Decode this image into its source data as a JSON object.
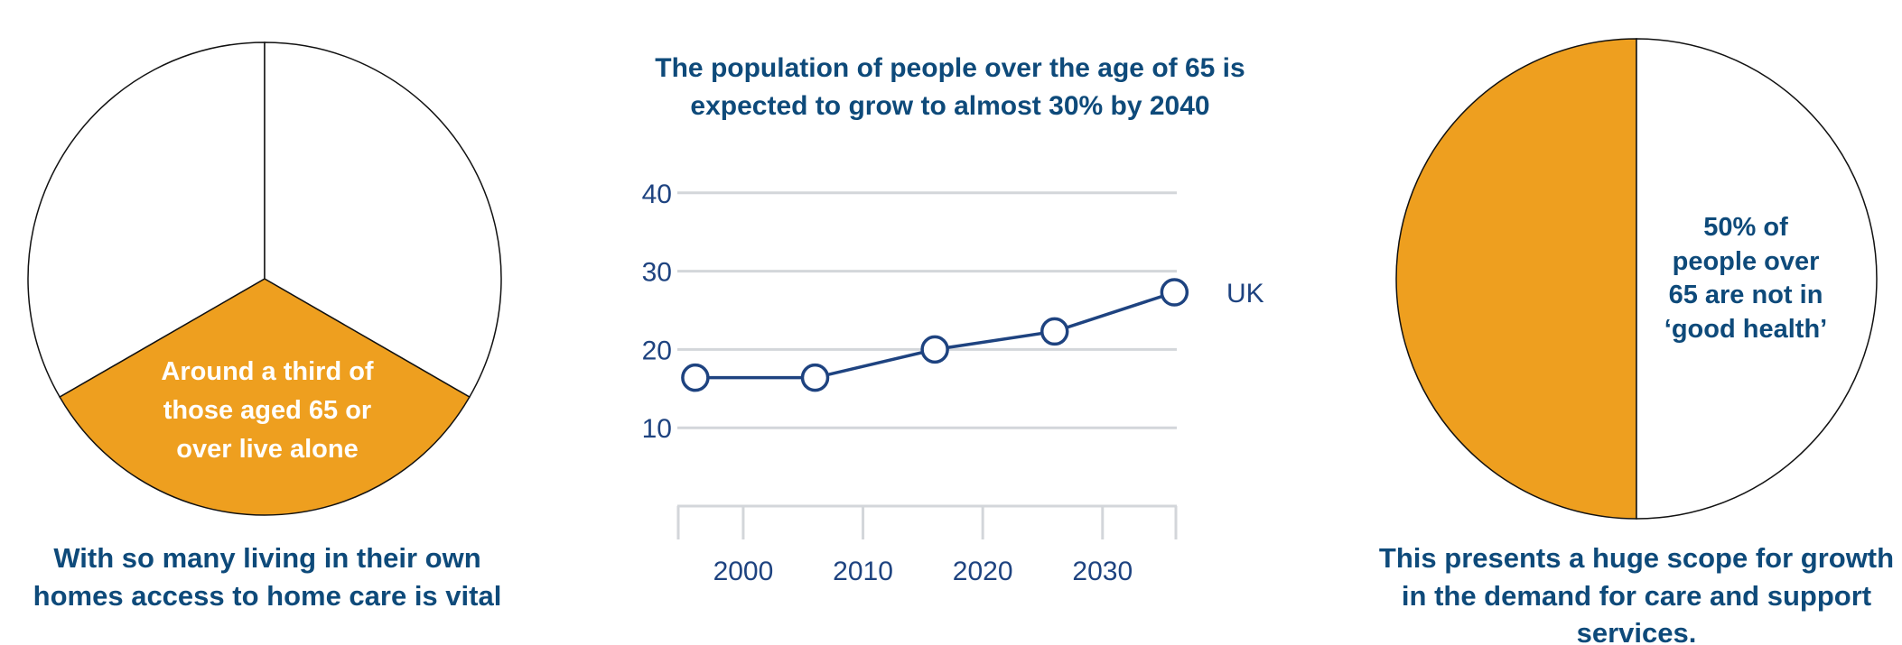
{
  "colors": {
    "accent_orange": "#ee9f1f",
    "navy_text": "#0e4a7a",
    "line_blue": "#1e4380",
    "grid_gray": "#d3d6da",
    "pie_outline": "#111111"
  },
  "chart_data": [
    {
      "type": "pie",
      "id": "living-alone-pie",
      "slices": [
        {
          "label": "Live alone",
          "value": 33.3,
          "color": "#ee9f1f"
        },
        {
          "label": "Other",
          "value": 33.3,
          "color": "#ffffff"
        },
        {
          "label": "Other",
          "value": 33.3,
          "color": "#ffffff"
        }
      ],
      "annotation_lines": [
        "Around a third of",
        "those aged 65 or",
        "over live alone"
      ],
      "caption_lines": [
        "With so many living in their own",
        "homes access to home care is vital"
      ]
    },
    {
      "type": "line",
      "id": "population-over-65-line",
      "title_lines": [
        "The population of people over the age of 65 is",
        "expected to grow to almost 30% by 2040"
      ],
      "xlabel": "",
      "ylabel": "",
      "x_ticks": [
        2000,
        2010,
        2020,
        2030
      ],
      "y_ticks": [
        10,
        20,
        30,
        40
      ],
      "xlim": [
        1994.5,
        2036.2
      ],
      "ylim": [
        0,
        40
      ],
      "grid": true,
      "series": [
        {
          "name": "UK",
          "x": [
            1996,
            2006,
            2016,
            2026,
            2036
          ],
          "values": [
            16.4,
            16.4,
            20.0,
            22.3,
            27.3
          ]
        }
      ],
      "series_label": "UK"
    },
    {
      "type": "pie",
      "id": "good-health-pie",
      "slices": [
        {
          "label": "Not in good health",
          "value": 50,
          "color": "#ee9f1f"
        },
        {
          "label": "Other",
          "value": 50,
          "color": "#ffffff"
        }
      ],
      "annotation_lines": [
        "50% of",
        "people over",
        "65 are not in",
        "‘good health’"
      ],
      "caption_lines": [
        "This presents a huge scope for growth",
        "in the demand for care and support",
        "services."
      ]
    }
  ]
}
